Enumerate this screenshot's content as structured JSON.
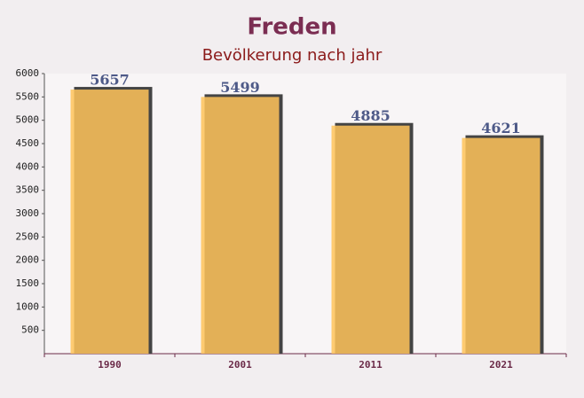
{
  "chart_data": {
    "type": "bar",
    "title": "Freden",
    "subtitle": "Bevölkerung nach jahr",
    "categories": [
      "1990",
      "2001",
      "2011",
      "2021"
    ],
    "values": [
      5657,
      5499,
      4885,
      4621
    ],
    "color": "#ffc35a",
    "ylim": [
      0,
      6000
    ],
    "yticks": [
      500,
      1000,
      1500,
      2000,
      2500,
      3000,
      3500,
      4000,
      4500,
      5000,
      5500,
      6000
    ]
  }
}
